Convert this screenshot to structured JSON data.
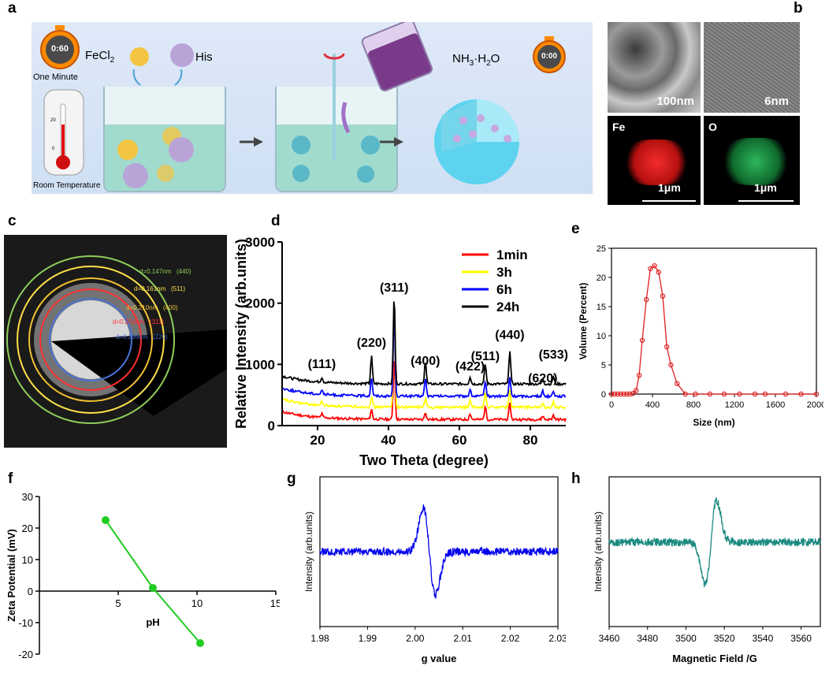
{
  "panels": {
    "a": "a",
    "b": "b",
    "c": "c",
    "d": "d",
    "e": "e",
    "f": "f",
    "g": "g",
    "h": "h"
  },
  "panel_a": {
    "timer_start": "0:60",
    "timer_end": "0:00",
    "one_minute": "One Minute",
    "room_temp": "Room Temperature",
    "thermo_ticks": [
      "20",
      "0"
    ],
    "fecl2": "FeCl",
    "fecl2_sub": "2",
    "his": "His",
    "nh3_a": "NH",
    "nh3_sub": "3",
    "nh3_b": "·H",
    "nh3_sub2": "2",
    "nh3_c": "O"
  },
  "panel_b": {
    "scale1": "100nm",
    "scale2": "6nm",
    "fe": "Fe",
    "o": "O",
    "scale3": "1μm",
    "scale4": "1μm"
  },
  "panel_c": {
    "rings": [
      {
        "label": "d=0.147nm",
        "hkl": "(440)",
        "color": "#8fce5a"
      },
      {
        "label": "d=0.161nm",
        "hkl": "(511)",
        "color": "#ffe14a"
      },
      {
        "label": "d=0.210nm",
        "hkl": "(400)",
        "color": "#f1c232"
      },
      {
        "label": "d=0.254nm",
        "hkl": "(311)",
        "color": "#ff3030"
      },
      {
        "label": "d=0.296nm",
        "hkl": "(220)",
        "color": "#4a72d8"
      }
    ]
  },
  "chart_data": [
    {
      "panel": "d",
      "type": "line",
      "title": "",
      "xlabel": "Two Theta (degree)",
      "ylabel": "Relative Intensity (arb.units)",
      "xlim": [
        10,
        90
      ],
      "ylim": [
        0,
        3000
      ],
      "xticks": [
        20,
        40,
        60,
        80
      ],
      "yticks": [
        0,
        1000,
        2000,
        3000
      ],
      "legend": [
        "1min",
        "3h",
        "6h",
        "24h"
      ],
      "series": [
        {
          "name": "1min",
          "color": "#ff0000",
          "baseline": 100,
          "peak_heights": [
            60,
            160,
            1050,
            120,
            100,
            220,
            260,
            60,
            70
          ]
        },
        {
          "name": "3h",
          "color": "#ffff00",
          "baseline": 300,
          "peak_heights": [
            60,
            170,
            1800,
            140,
            110,
            240,
            290,
            60,
            80
          ]
        },
        {
          "name": "6h",
          "color": "#0000ff",
          "baseline": 480,
          "peak_heights": [
            70,
            300,
            1450,
            300,
            110,
            250,
            320,
            80,
            90
          ]
        },
        {
          "name": "24h",
          "color": "#000000",
          "baseline": 680,
          "peak_heights": [
            80,
            450,
            1450,
            380,
            120,
            330,
            560,
            90,
            120
          ]
        }
      ],
      "peaks": [
        {
          "hkl": "(111)",
          "x": 21.2
        },
        {
          "hkl": "(220)",
          "x": 35.2
        },
        {
          "hkl": "(311)",
          "x": 41.6
        },
        {
          "hkl": "(400)",
          "x": 50.4
        },
        {
          "hkl": "(422)",
          "x": 63.0
        },
        {
          "hkl": "(511)",
          "x": 67.3
        },
        {
          "hkl": "(440)",
          "x": 74.2
        },
        {
          "hkl": "(620)",
          "x": 83.5
        },
        {
          "hkl": "(533)",
          "x": 86.5
        }
      ]
    },
    {
      "panel": "e",
      "type": "line",
      "title": "",
      "xlabel": "Size (nm)",
      "ylabel": "Volume (Percent)",
      "xlim": [
        0,
        2000
      ],
      "ylim": [
        0,
        25
      ],
      "xticks": [
        0,
        400,
        800,
        1200,
        1600,
        2000
      ],
      "yticks": [
        0,
        5,
        10,
        15,
        20,
        25
      ],
      "color": "#e02020",
      "x": [
        0,
        30,
        60,
        90,
        120,
        150,
        180,
        210,
        240,
        270,
        300,
        340,
        380,
        420,
        460,
        500,
        540,
        580,
        640,
        720,
        820,
        960,
        1100,
        1250,
        1400,
        1500,
        1700,
        1850,
        2000
      ],
      "y": [
        0,
        0,
        0,
        0,
        0,
        0,
        0,
        0.1,
        0.6,
        3.2,
        9.2,
        16.2,
        21.5,
        22.0,
        20.9,
        16.8,
        8.1,
        5.0,
        1.8,
        0.0,
        0.0,
        0.0,
        0.0,
        0.0,
        0.0,
        0.0,
        0.0,
        0.0,
        0.0
      ]
    },
    {
      "panel": "f",
      "type": "scatter",
      "title": "",
      "xlabel": "pH",
      "ylabel": "Zeta Potential (mV)",
      "xlim": [
        0,
        15
      ],
      "ylim": [
        -20,
        30
      ],
      "xticks": [
        5,
        10,
        15
      ],
      "yticks": [
        -20,
        -10,
        0,
        10,
        20,
        30
      ],
      "color": "#22cc22",
      "x": [
        4.2,
        7.2,
        10.2
      ],
      "y": [
        22.5,
        1.0,
        -16.5
      ]
    },
    {
      "panel": "g",
      "type": "line",
      "title": "",
      "xlabel": "g value",
      "ylabel": "Intensity (arb.units)",
      "xlim": [
        1.98,
        2.03
      ],
      "xticks": [
        1.98,
        1.99,
        2.0,
        2.01,
        2.02,
        2.03
      ],
      "color": "#0000ee",
      "center": 2.003
    },
    {
      "panel": "h",
      "type": "line",
      "title": "",
      "xlabel": "Magnetic Field /G",
      "ylabel": "Intensity (arb.units)",
      "xlim": [
        3460,
        3570
      ],
      "xticks": [
        3460,
        3480,
        3500,
        3520,
        3540,
        3560
      ],
      "color": "#1a8a80",
      "center": 3513
    }
  ]
}
